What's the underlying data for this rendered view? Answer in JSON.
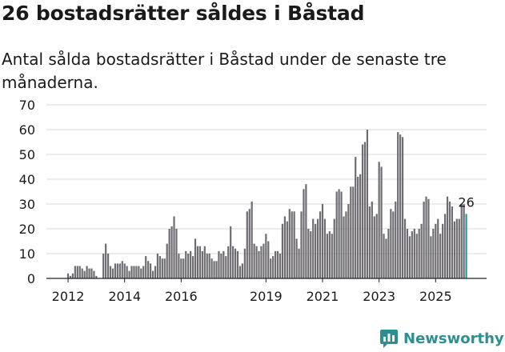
{
  "title": "26 bostadsrätter såldes i Båstad",
  "subtitle": "Antal sålda bostadsrätter i Båstad under de senaste tre månaderna.",
  "brand": {
    "name": "Newsworthy",
    "logo_icon": "newsworthy-chart-icon"
  },
  "colors": {
    "bars": "#6e6c72",
    "highlight": "#1f9a96",
    "grid": "#d9d9d9",
    "text": "#1a1a1a",
    "brand": "#2d8f8f"
  },
  "chart_data": {
    "type": "bar",
    "title": "26 bostadsrätter såldes i Båstad",
    "xlabel": "",
    "ylabel": "",
    "ylim": [
      0,
      70
    ],
    "yticks": [
      0,
      10,
      20,
      30,
      40,
      50,
      60,
      70
    ],
    "grid": true,
    "x_start": "2011-12",
    "xtick_labels": [
      {
        "label": "2012",
        "month": "2012-01"
      },
      {
        "label": "2014",
        "month": "2014-01"
      },
      {
        "label": "2016",
        "month": "2016-01"
      },
      {
        "label": "2019",
        "month": "2019-01"
      },
      {
        "label": "2021",
        "month": "2021-01"
      },
      {
        "label": "2023",
        "month": "2023-01"
      },
      {
        "label": "2025",
        "month": "2025-01"
      }
    ],
    "highlight_label": "26",
    "values": [
      0,
      2,
      1,
      2,
      5,
      5,
      5,
      4,
      3,
      5,
      4,
      4,
      3,
      1,
      0,
      0,
      10,
      14,
      10,
      5,
      4,
      6,
      6,
      6,
      7,
      6,
      5,
      3,
      5,
      5,
      5,
      5,
      4,
      5,
      9,
      7,
      6,
      3,
      5,
      10,
      9,
      8,
      8,
      14,
      20,
      21,
      25,
      20,
      10,
      8,
      8,
      11,
      10,
      11,
      9,
      16,
      13,
      13,
      11,
      13,
      10,
      10,
      8,
      7,
      7,
      11,
      10,
      11,
      9,
      13,
      21,
      13,
      12,
      11,
      5,
      6,
      12,
      27,
      28,
      31,
      14,
      13,
      11,
      13,
      14,
      18,
      15,
      8,
      9,
      11,
      11,
      10,
      22,
      25,
      23,
      28,
      27,
      27,
      16,
      12,
      27,
      36,
      38,
      20,
      19,
      24,
      22,
      24,
      27,
      30,
      24,
      18,
      19,
      18,
      24,
      35,
      36,
      35,
      25,
      27,
      30,
      37,
      37,
      49,
      41,
      42,
      54,
      55,
      60,
      29,
      31,
      25,
      26,
      47,
      45,
      18,
      16,
      20,
      28,
      27,
      31,
      59,
      58,
      57,
      24,
      20,
      17,
      19,
      20,
      18,
      20,
      22,
      31,
      33,
      32,
      17,
      20,
      22,
      24,
      18,
      22,
      26,
      33,
      31,
      29,
      23,
      24,
      24,
      30,
      30,
      26
    ]
  }
}
